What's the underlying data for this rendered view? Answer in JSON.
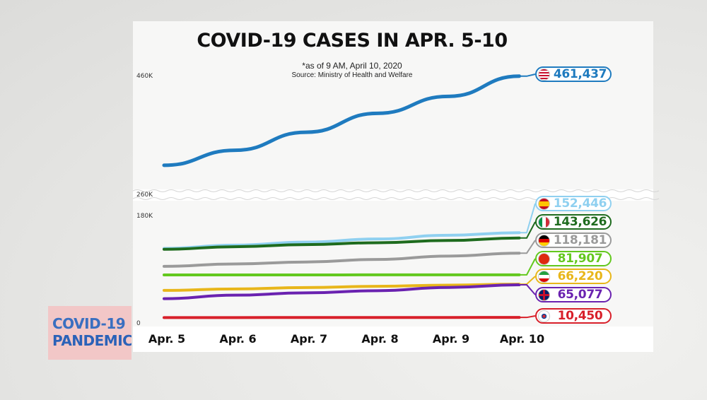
{
  "badge": {
    "line1": "COVID-19",
    "line2": "PANDEMIC"
  },
  "chart_data": {
    "type": "line",
    "title": "COVID-19 CASES IN APR. 5-10",
    "subtitle": "*as of 9 AM, April 10, 2020",
    "source": "Source: Ministry of Health and Welfare",
    "categories": [
      "Apr. 5",
      "Apr. 6",
      "Apr. 7",
      "Apr. 8",
      "Apr. 9",
      "Apr. 10"
    ],
    "y_ticks": [
      "460K",
      "260K",
      "180K",
      "0"
    ],
    "axis_break": "between 180K and 260K",
    "grid": false,
    "series": [
      {
        "name": "United States",
        "flag": "us",
        "color": "#1f7bbf",
        "end_label": "461,437",
        "values": [
          311357,
          336673,
          367004,
          398809,
          427460,
          461437
        ]
      },
      {
        "name": "Spain",
        "flag": "es",
        "color": "#8fd0f0",
        "end_label": "152,446",
        "values": [
          126168,
          131646,
          136675,
          141942,
          148220,
          152446
        ]
      },
      {
        "name": "Italy",
        "flag": "it",
        "color": "#1e6b1e",
        "end_label": "143,626",
        "values": [
          124632,
          128948,
          132547,
          135586,
          139422,
          143626
        ]
      },
      {
        "name": "Germany",
        "flag": "de",
        "color": "#9a9a9a",
        "end_label": "118,181",
        "values": [
          96092,
          100123,
          103374,
          107663,
          113296,
          118181
        ]
      },
      {
        "name": "China",
        "flag": "cn",
        "color": "#63c81e",
        "end_label": "81,907",
        "values": [
          81669,
          81708,
          81740,
          81802,
          81865,
          81907
        ]
      },
      {
        "name": "Iran",
        "flag": "ir",
        "color": "#e8b61a",
        "end_label": "66,220",
        "values": [
          55743,
          58226,
          60500,
          62589,
          64586,
          66220
        ]
      },
      {
        "name": "United Kingdom",
        "flag": "gb",
        "color": "#6a22b0",
        "end_label": "65,077",
        "values": [
          41903,
          47806,
          51608,
          55242,
          60733,
          65077
        ]
      },
      {
        "name": "South Korea",
        "flag": "kr",
        "color": "#d8202a",
        "end_label": "10,450",
        "values": [
          10237,
          10284,
          10331,
          10384,
          10423,
          10450
        ]
      }
    ]
  }
}
